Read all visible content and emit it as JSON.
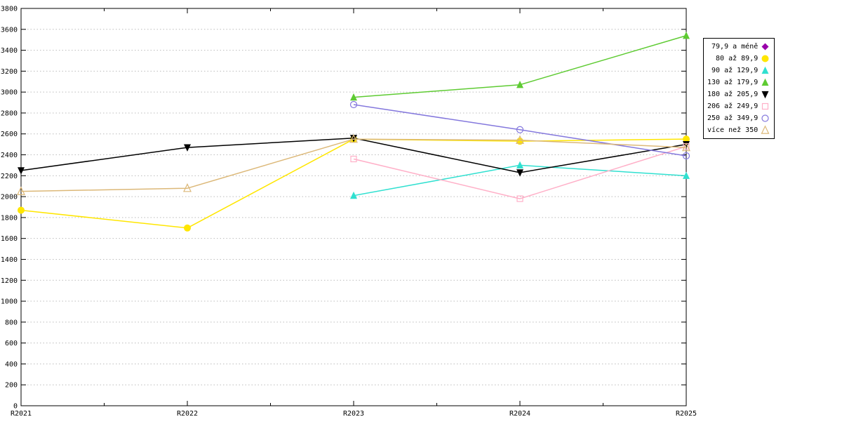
{
  "chart_data": {
    "type": "line",
    "title": "",
    "xlabel": "",
    "ylabel": "",
    "x": [
      "R2021",
      "R2022",
      "R2023",
      "R2024",
      "R2025"
    ],
    "ylim": [
      0,
      3800
    ],
    "ytick_step": 200,
    "grid": true,
    "legend_position": "right",
    "background": "#ffffff",
    "series": [
      {
        "name": "79,9 a méně",
        "color": "#9900aa",
        "marker": "diamond-filled",
        "values": [
          null,
          null,
          null,
          null,
          null
        ]
      },
      {
        "name": "80 až 89,9",
        "color": "#ffe600",
        "marker": "circle-filled",
        "values": [
          1870,
          1700,
          2550,
          2530,
          2550
        ]
      },
      {
        "name": "90 až 129,9",
        "color": "#30e0d0",
        "marker": "triangle-filled",
        "values": [
          null,
          null,
          2010,
          2300,
          2200
        ]
      },
      {
        "name": "130 až 179,9",
        "color": "#5ecb32",
        "marker": "triangle-filled",
        "values": [
          null,
          null,
          2950,
          3070,
          3540
        ]
      },
      {
        "name": "180 až 205,9",
        "color": "#000000",
        "marker": "triangle-down-filled",
        "values": [
          2250,
          2470,
          2560,
          2230,
          2500
        ]
      },
      {
        "name": "206 až 249,9",
        "color": "#ffb0c8",
        "marker": "square-open",
        "values": [
          null,
          null,
          2360,
          1980,
          2480
        ]
      },
      {
        "name": "250 až 349,9",
        "color": "#8478dd",
        "marker": "circle-open",
        "values": [
          null,
          null,
          2880,
          2640,
          2390
        ]
      },
      {
        "name": "více než 350",
        "color": "#dcb878",
        "marker": "triangle-open",
        "values": [
          2050,
          2080,
          2550,
          2540,
          2470
        ]
      }
    ]
  }
}
